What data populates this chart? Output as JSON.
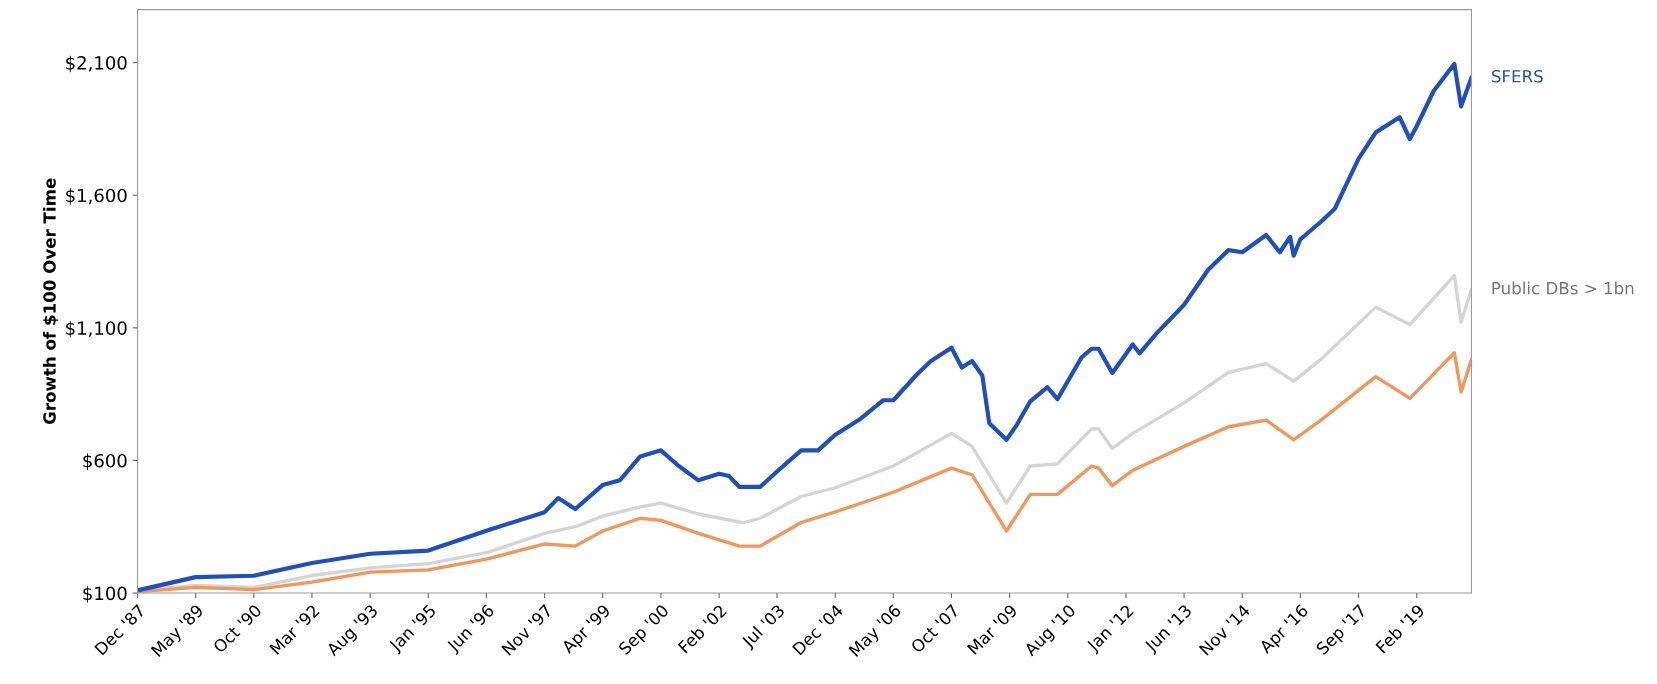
{
  "chart_data": {
    "type": "line",
    "ylabel": "Growth of $100 Over Time",
    "xlim": [
      "1987-12",
      "2020-06"
    ],
    "ylim": [
      100,
      2300
    ],
    "yticks": [
      {
        "value": 100,
        "label": "$100"
      },
      {
        "value": 600,
        "label": "$600"
      },
      {
        "value": 1100,
        "label": "$1,100"
      },
      {
        "value": 1600,
        "label": "$1,600"
      },
      {
        "value": 2100,
        "label": "$2,100"
      }
    ],
    "xticks": [
      {
        "value": "1987-12",
        "label": "Dec '87"
      },
      {
        "value": "1989-05",
        "label": "May '89"
      },
      {
        "value": "1990-10",
        "label": "Oct '90"
      },
      {
        "value": "1992-03",
        "label": "Mar '92"
      },
      {
        "value": "1993-08",
        "label": "Aug '93"
      },
      {
        "value": "1995-01",
        "label": "Jan '95"
      },
      {
        "value": "1996-06",
        "label": "Jun '96"
      },
      {
        "value": "1997-11",
        "label": "Nov '97"
      },
      {
        "value": "1999-04",
        "label": "Apr '99"
      },
      {
        "value": "2000-09",
        "label": "Sep '00"
      },
      {
        "value": "2002-02",
        "label": "Feb '02"
      },
      {
        "value": "2003-07",
        "label": "Jul '03"
      },
      {
        "value": "2004-12",
        "label": "Dec '04"
      },
      {
        "value": "2006-05",
        "label": "May '06"
      },
      {
        "value": "2007-10",
        "label": "Oct '07"
      },
      {
        "value": "2009-03",
        "label": "Mar '09"
      },
      {
        "value": "2010-08",
        "label": "Aug '10"
      },
      {
        "value": "2012-01",
        "label": "Jan '12"
      },
      {
        "value": "2013-06",
        "label": "Jun '13"
      },
      {
        "value": "2014-11",
        "label": "Nov '14"
      },
      {
        "value": "2016-04",
        "label": "Apr '16"
      },
      {
        "value": "2017-09",
        "label": "Sep '17"
      },
      {
        "value": "2019-02",
        "label": "Feb '19"
      }
    ],
    "grid": false,
    "marker": "none",
    "line_style": "solid",
    "series": [
      {
        "name": "Public DBs > 1bn",
        "color": "#d4d4d4",
        "x": [
          "1987-12",
          "1989-05",
          "1990-10",
          "1992-03",
          "1993-08",
          "1995-01",
          "1996-06",
          "1997-11",
          "1998-08",
          "1999-04",
          "2000-03",
          "2000-09",
          "2001-08",
          "2002-09",
          "2003-02",
          "2004-02",
          "2004-12",
          "2006-05",
          "2007-10",
          "2008-04",
          "2009-02",
          "2009-09",
          "2010-05",
          "2011-03",
          "2011-05",
          "2011-09",
          "2012-03",
          "2013-06",
          "2014-07",
          "2015-06",
          "2016-02",
          "2016-10",
          "2018-02",
          "2018-12",
          "2020-01",
          "2020-03",
          "2020-06"
        ],
        "values": [
          110,
          129,
          121,
          166,
          195,
          211,
          252,
          325,
          350,
          390,
          425,
          439,
          398,
          365,
          382,
          464,
          497,
          579,
          702,
          653,
          439,
          579,
          587,
          719,
          719,
          645,
          702,
          817,
          932,
          965,
          899,
          981,
          1178,
          1112,
          1297,
          1121,
          1244
        ]
      },
      {
        "color": "#f4955a",
        "x": [
          "1987-12",
          "1989-05",
          "1990-10",
          "1992-03",
          "1993-08",
          "1995-01",
          "1996-06",
          "1997-11",
          "1998-08",
          "1999-04",
          "2000-03",
          "2000-09",
          "2001-08",
          "2002-08",
          "2003-02",
          "2004-02",
          "2004-12",
          "2006-05",
          "2007-10",
          "2008-04",
          "2009-02",
          "2009-09",
          "2010-05",
          "2011-03",
          "2011-05",
          "2011-09",
          "2012-03",
          "2013-06",
          "2014-07",
          "2015-06",
          "2016-02",
          "2016-10",
          "2018-02",
          "2018-12",
          "2020-01",
          "2020-03",
          "2020-06"
        ],
        "values": [
          105,
          121,
          113,
          141,
          179,
          187,
          228,
          285,
          277,
          334,
          382,
          374,
          325,
          277,
          277,
          366,
          406,
          480,
          571,
          546,
          334,
          472,
          472,
          579,
          571,
          505,
          563,
          653,
          727,
          752,
          678,
          752,
          916,
          834,
          1006,
          858,
          981
        ]
      },
      {
        "name": "SFERS",
        "color": "#1f4fbf",
        "x": [
          "1987-12",
          "1989-05",
          "1990-10",
          "1992-03",
          "1993-08",
          "1995-01",
          "1996-06",
          "1997-11",
          "1998-03",
          "1998-08",
          "1999-04",
          "1999-09",
          "2000-03",
          "2000-09",
          "2001-02",
          "2001-08",
          "2002-02",
          "2002-05",
          "2002-08",
          "2003-02",
          "2003-07",
          "2004-02",
          "2004-07",
          "2004-12",
          "2005-07",
          "2006-02",
          "2006-05",
          "2006-12",
          "2007-04",
          "2007-10",
          "2008-01",
          "2008-04",
          "2008-07",
          "2008-09",
          "2009-02",
          "2009-05",
          "2009-09",
          "2010-02",
          "2010-05",
          "2010-12",
          "2011-03",
          "2011-05",
          "2011-09",
          "2012-03",
          "2012-05",
          "2012-10",
          "2013-06",
          "2014-01",
          "2014-07",
          "2014-11",
          "2015-06",
          "2015-10",
          "2016-01",
          "2016-02",
          "2016-04",
          "2016-10",
          "2017-02",
          "2017-09",
          "2018-02",
          "2018-09",
          "2018-12",
          "2019-02",
          "2019-07",
          "2020-01",
          "2020-03",
          "2020-06"
        ],
        "values": [
          110,
          160,
          165,
          213,
          248,
          260,
          335,
          405,
          458,
          417,
          507,
          525,
          615,
          638,
          581,
          525,
          550,
          541,
          500,
          500,
          558,
          638,
          638,
          697,
          753,
          827,
          827,
          926,
          975,
          1025,
          950,
          975,
          920,
          740,
          678,
          732,
          823,
          876,
          831,
          988,
          1021,
          1021,
          930,
          1037,
          1004,
          1080,
          1187,
          1319,
          1393,
          1385,
          1450,
          1385,
          1443,
          1372,
          1434,
          1500,
          1549,
          1738,
          1837,
          1894,
          1812,
          1861,
          1993,
          2095,
          1935,
          2043
        ]
      }
    ]
  }
}
